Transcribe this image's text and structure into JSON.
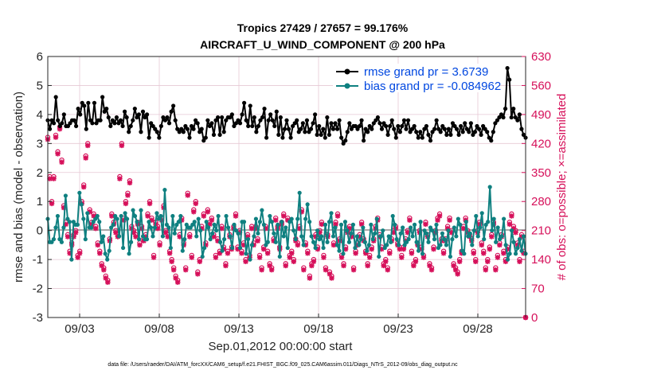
{
  "colors": {
    "rmse": "#000000",
    "bias": "#0f8080",
    "obs": "#d6105a",
    "zero": "#aaaaaa",
    "grid": "#e6c8d4",
    "legend_text": "#0047e0"
  },
  "footer": "data file: /Users/raeder/DAI/ATM_forcXX/CAM6_setup/f.e21.FHIST_BGC.f09_025.CAM6assim.011/Diags_NTrS_2012-09/obs_diag_output.nc",
  "chart_data": {
    "type": "line",
    "title_line1": "Tropics 27429 / 27657 = 99.176%",
    "title_line2": "AIRCRAFT_U_WIND_COMPONENT @ 200 hPa",
    "xlabel": "Sep.01,2012 00:00:00 start",
    "ylabel": "rmse and bias (model - observation)",
    "ylabel_right": "# of obs: o=possible; ×=assimilated",
    "xlim": [
      1,
      31
    ],
    "ylim": [
      -3,
      6
    ],
    "ylim_right": [
      0,
      630
    ],
    "x_ticks": [
      3,
      8,
      13,
      18,
      23,
      28
    ],
    "x_tick_labels": [
      "09/03",
      "09/08",
      "09/13",
      "09/18",
      "09/23",
      "09/28"
    ],
    "y_ticks": [
      -3,
      -2,
      -1,
      0,
      1,
      2,
      3,
      4,
      5,
      6
    ],
    "y_tick_labels": [
      "-3",
      "-2",
      "-1",
      "0",
      "1",
      "2",
      "3",
      "4",
      "5",
      "6"
    ],
    "y_ticks_right": [
      0,
      70,
      140,
      210,
      280,
      350,
      420,
      490,
      560,
      630
    ],
    "y_tick_labels_right": [
      "0",
      "70",
      "140",
      "210",
      "280",
      "350",
      "420",
      "490",
      "560",
      "630"
    ],
    "grid": true,
    "legend_position": "top-right",
    "series": [
      {
        "name": "rmse grand pr = 3.6739",
        "kind": "line-marker",
        "values": [
          3.8,
          3.5,
          3.8,
          3.7,
          4.6,
          3.8,
          3.6,
          3.7,
          4.0,
          3.6,
          3.6,
          3.7,
          3.8,
          3.8,
          3.6,
          4.2,
          4.0,
          4.4,
          4.3,
          3.5,
          4.4,
          3.8,
          3.7,
          4.4,
          3.7,
          3.8,
          3.8,
          4.6,
          4.1,
          4.2,
          3.9,
          3.6,
          3.8,
          3.7,
          3.9,
          3.7,
          3.8,
          3.6,
          4.1,
          3.9,
          3.4,
          3.6,
          3.8,
          4.2,
          3.9,
          4.0,
          3.4,
          4.1,
          3.9,
          4.0,
          3.2,
          3.7,
          3.6,
          3.5,
          3.4,
          3.2,
          3.6,
          3.9,
          3.8,
          3.9,
          3.7,
          4.1,
          4.3,
          3.8,
          3.5,
          3.4,
          3.5,
          3.4,
          3.6,
          3.5,
          3.2,
          3.6,
          3.5,
          3.8,
          3.7,
          3.4,
          3.5,
          3.1,
          3.2,
          3.8,
          3.6,
          3.7,
          3.3,
          3.8,
          3.9,
          3.3,
          3.9,
          3.4,
          3.8,
          3.9,
          3.9,
          4.0,
          3.6,
          3.7,
          3.8,
          3.7,
          4.0,
          4.4,
          3.8,
          3.6,
          4.3,
          3.6,
          3.9,
          3.4,
          3.6,
          3.8,
          3.9,
          4.2,
          3.2,
          3.8,
          4.0,
          3.8,
          3.6,
          4.1,
          3.3,
          3.9,
          3.2,
          3.5,
          3.8,
          3.5,
          3.2,
          3.6,
          3.7,
          3.8,
          3.4,
          3.5,
          3.7,
          3.4,
          3.8,
          3.4,
          3.5,
          3.7,
          4.0,
          3.3,
          3.6,
          3.3,
          3.5,
          3.2,
          3.9,
          3.3,
          3.7,
          3.5,
          3.7,
          3.5,
          3.8,
          3.2,
          3.0,
          3.1,
          3.4,
          3.7,
          3.5,
          3.6,
          3.6,
          3.5,
          3.6,
          3.8,
          3.1,
          3.5,
          3.4,
          3.6,
          3.5,
          3.7,
          3.8,
          3.9,
          3.7,
          3.5,
          3.7,
          3.6,
          3.3,
          3.6,
          3.8,
          3.5,
          3.2,
          3.6,
          3.4,
          3.6,
          3.8,
          3.5,
          3.8,
          3.4,
          3.5,
          3.6,
          3.4,
          3.2,
          3.4,
          3.2,
          3.5,
          3.6,
          3.3,
          3.1,
          3.4,
          3.5,
          3.8,
          3.5,
          3.4,
          3.6,
          3.5,
          3.3,
          3.5,
          3.3,
          3.7,
          3.6,
          3.5,
          3.3,
          3.6,
          3.4,
          3.7,
          3.5,
          3.4,
          3.7,
          3.3,
          3.4,
          3.6,
          3.5,
          3.3,
          3.6,
          3.5,
          3.4,
          3.2,
          3.1,
          3.4,
          3.7,
          3.8,
          3.9,
          4.0,
          3.9,
          4.2,
          5.6,
          5.2,
          3.9,
          4.2,
          3.9,
          3.8,
          4.0,
          3.5,
          3.3,
          3.2
        ]
      },
      {
        "name": "bias grand pr = -0.084962",
        "kind": "line-marker",
        "values": [
          0.4,
          -0.4,
          -0.4,
          -0.3,
          0.1,
          0.5,
          -0.3,
          -0.4,
          0.1,
          1.2,
          0.4,
          0.3,
          -1.0,
          0.3,
          0.2,
          0.2,
          1.3,
          0.9,
          0.4,
          -0.3,
          0.6,
          0.1,
          0.1,
          0.3,
          0.4,
          0.5,
          0.3,
          -0.4,
          -0.2,
          -0.8,
          -1.0,
          -0.7,
          0.1,
          0.2,
          0.5,
          0.4,
          -0.2,
          0.5,
          -0.6,
          0.6,
          0.4,
          -0.8,
          -0.4,
          0.7,
          0.5,
          0.3,
          -0.3,
          0.7,
          -0.2,
          -0.3,
          -0.3,
          0.3,
          0.1,
          -0.2,
          0.1,
          0.6,
          0.4,
          0.5,
          -0.2,
          1.4,
          0.2,
          0.1,
          -0.6,
          0.5,
          -0.1,
          0.2,
          0.3,
          0.5,
          -0.7,
          -0.3,
          0.2,
          0.1,
          0.1,
          0.2,
          0.3,
          -0.2,
          0.4,
          0.0,
          -0.9,
          -0.6,
          0.3,
          0.1,
          -0.3,
          -0.1,
          0.2,
          0.0,
          0.5,
          -0.4,
          -0.7,
          -0.3,
          0.5,
          0.1,
          -0.2,
          -0.6,
          0.2,
          0.0,
          -0.1,
          -0.6,
          0.3,
          0.3,
          -0.8,
          -0.3,
          -1.0,
          -0.5,
          -0.2,
          0.4,
          -0.1,
          0.3,
          0.7,
          0.2,
          -0.5,
          -0.4,
          0.5,
          0.3,
          -0.1,
          -0.4,
          0.2,
          -0.9,
          0.3,
          -0.2,
          0.1,
          -0.6,
          0.3,
          0.4,
          0.0,
          -0.3,
          0.4,
          1.3,
          -0.2,
          -0.5,
          0.4,
          0.9,
          0.3,
          -0.2,
          -0.4,
          -0.6,
          0.0,
          -0.3,
          -0.2,
          -0.6,
          0.2,
          -0.4,
          0.3,
          0.6,
          -0.2,
          0.1,
          -0.5,
          -0.7,
          0.2,
          -0.8,
          0.3,
          0.0,
          -0.4,
          -0.1,
          0.2,
          -0.6,
          -0.2,
          -0.5,
          -0.3,
          0.1,
          -0.4,
          -0.7,
          -0.5,
          0.2,
          -0.3,
          -0.1,
          0.4,
          -0.9,
          -0.2,
          0.0,
          -0.6,
          -0.5,
          -0.2,
          -0.4,
          0.5,
          0.2,
          -0.3,
          -0.5,
          -0.1,
          0.1,
          -0.5,
          -0.4,
          -0.3,
          0.1,
          -0.2,
          0.2,
          -0.4,
          -0.7,
          0.3,
          -0.8,
          0.0,
          -0.1,
          -0.4,
          0.1,
          0.0,
          -0.3,
          0.2,
          -0.6,
          -0.5,
          -0.1,
          -0.3,
          -0.5,
          0.0,
          -0.9,
          -0.3,
          0.1,
          -0.2,
          0.4,
          0.2,
          -0.7,
          -0.8,
          0.3,
          -0.2,
          -0.1,
          -0.5,
          0.0,
          0.5,
          -0.2,
          0.1,
          0.6,
          -0.3,
          0.2,
          0.3,
          1.5,
          0.0,
          0.4,
          -0.4,
          0.1,
          -0.3,
          -0.2,
          0.4,
          -0.5,
          -1.0,
          -0.8,
          0.0,
          -0.4,
          -0.8,
          -0.6,
          -0.3,
          -0.7,
          -0.2,
          -0.8
        ]
      },
      {
        "name": "obs possible",
        "kind": "marker-o",
        "values": [
          435,
          340,
          280,
          340,
          440,
          400,
          460,
          380,
          270,
          230,
          200,
          160,
          180,
          200,
          210,
          150,
          160,
          280,
          320,
          390,
          420,
          260,
          230,
          250,
          220,
          180,
          160,
          130,
          120,
          100,
          90,
          190,
          250,
          230,
          210,
          200,
          340,
          420,
          240,
          280,
          300,
          330,
          220,
          210,
          200,
          230,
          180,
          220,
          190,
          200,
          250,
          280,
          240,
          150,
          230,
          220,
          180,
          240,
          270,
          210,
          200,
          160,
          140,
          120,
          100,
          90,
          200,
          240,
          180,
          120,
          300,
          200,
          150,
          260,
          280,
          110,
          140,
          220,
          250,
          180,
          260,
          230,
          240,
          200,
          150,
          190,
          160,
          220,
          170,
          130,
          160,
          200,
          170,
          220,
          250,
          170,
          210,
          160,
          180,
          140,
          200,
          150,
          220,
          180,
          220,
          190,
          150,
          120,
          170,
          220,
          160,
          130,
          120,
          190,
          240,
          220,
          170,
          230,
          250,
          130,
          240,
          150,
          160,
          140,
          190,
          180,
          220,
          260,
          120,
          180,
          160,
          100,
          130,
          140,
          200,
          170,
          210,
          230,
          150,
          120,
          200,
          110,
          100,
          180,
          230,
          250,
          190,
          150,
          130,
          170,
          210,
          220,
          200,
          120,
          160,
          180,
          200,
          230,
          190,
          160,
          130,
          150,
          170,
          190,
          220,
          240,
          200,
          170,
          130,
          140,
          120,
          160,
          190,
          210,
          220,
          180,
          170,
          150,
          170,
          190,
          210,
          240,
          160,
          130,
          140,
          180,
          210,
          170,
          150,
          230,
          200,
          130,
          120,
          170,
          210,
          240,
          250,
          190,
          160,
          190,
          220,
          240,
          210,
          130,
          120,
          110,
          140,
          160,
          220,
          240,
          210,
          200,
          190,
          160,
          140,
          210,
          230,
          180,
          160,
          120,
          140,
          170,
          200,
          230,
          120,
          150,
          180,
          200,
          160,
          140,
          170,
          230,
          250,
          220,
          210,
          180,
          140,
          200,
          160,
          0
        ]
      },
      {
        "name": "obs assimilated",
        "kind": "marker-x",
        "values": [
          430,
          335,
          275,
          335,
          435,
          395,
          455,
          375,
          265,
          225,
          195,
          155,
          175,
          195,
          205,
          145,
          155,
          275,
          315,
          385,
          415,
          255,
          225,
          245,
          215,
          175,
          155,
          125,
          115,
          95,
          85,
          185,
          245,
          225,
          205,
          195,
          335,
          415,
          235,
          275,
          295,
          325,
          215,
          205,
          195,
          225,
          175,
          215,
          185,
          195,
          245,
          275,
          235,
          145,
          225,
          215,
          175,
          235,
          265,
          205,
          195,
          155,
          135,
          115,
          95,
          85,
          195,
          235,
          175,
          115,
          295,
          195,
          145,
          255,
          275,
          105,
          135,
          215,
          245,
          175,
          255,
          225,
          235,
          195,
          145,
          185,
          155,
          215,
          165,
          125,
          155,
          195,
          165,
          215,
          245,
          165,
          205,
          155,
          175,
          135,
          195,
          145,
          215,
          175,
          215,
          185,
          145,
          115,
          165,
          215,
          155,
          125,
          115,
          185,
          235,
          215,
          165,
          225,
          245,
          125,
          235,
          145,
          155,
          135,
          185,
          175,
          215,
          255,
          115,
          175,
          155,
          95,
          125,
          135,
          195,
          165,
          205,
          225,
          145,
          115,
          195,
          105,
          95,
          175,
          225,
          245,
          185,
          145,
          125,
          165,
          205,
          215,
          195,
          115,
          155,
          175,
          195,
          225,
          185,
          155,
          125,
          145,
          165,
          185,
          215,
          235,
          195,
          165,
          125,
          135,
          115,
          155,
          185,
          205,
          215,
          175,
          165,
          145,
          165,
          185,
          205,
          235,
          155,
          125,
          135,
          175,
          205,
          165,
          145,
          225,
          195,
          125,
          115,
          165,
          205,
          235,
          245,
          185,
          155,
          185,
          215,
          235,
          205,
          125,
          115,
          105,
          135,
          155,
          215,
          235,
          205,
          195,
          185,
          155,
          135,
          205,
          225,
          175,
          155,
          115,
          135,
          165,
          195,
          225,
          115,
          145,
          175,
          195,
          155,
          135,
          165,
          225,
          245,
          215,
          205,
          175,
          135,
          195,
          155,
          0
        ]
      }
    ]
  }
}
